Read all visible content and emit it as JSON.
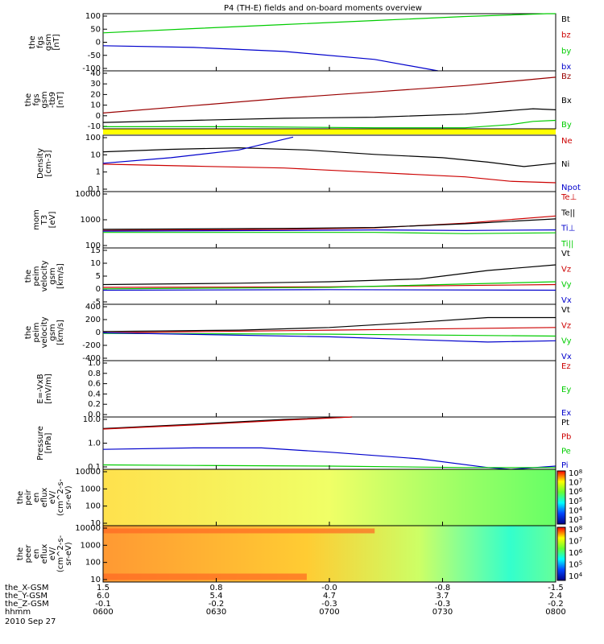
{
  "figure": {
    "title": "P4 (TH-E) fields and on-board moments overview",
    "date": "2010 Sep 27"
  },
  "colors": {
    "black": "#000000",
    "red": "#cc0000",
    "green": "#00cc00",
    "blue": "#0000cc",
    "darkred": "#990000",
    "yellow": "#ffff00"
  },
  "chart_data": [
    {
      "type": "line",
      "ylabel": [
        "the",
        "fgs",
        "gsm",
        "[nT]"
      ],
      "yticks": [
        "100",
        "50",
        "0",
        "-50",
        "-100"
      ],
      "ylim": [
        -100,
        100
      ],
      "scale": "linear",
      "legend": [
        {
          "name": "Bt",
          "color": "#000000"
        },
        {
          "name": "bz",
          "color": "#cc0000"
        },
        {
          "name": "by",
          "color": "#00cc00"
        },
        {
          "name": "bx",
          "color": "#0000cc"
        }
      ],
      "series": [
        {
          "name": "by",
          "color": "#00cc00",
          "x": [
            0,
            0.2,
            0.4,
            0.6,
            0.8,
            0.98,
            1
          ],
          "y": [
            33,
            48,
            62,
            76,
            90,
            100,
            100
          ]
        },
        {
          "name": "bx",
          "color": "#0000cc",
          "x": [
            0,
            0.2,
            0.4,
            0.6,
            0.74
          ],
          "y": [
            -12,
            -18,
            -32,
            -60,
            -100
          ]
        }
      ]
    },
    {
      "type": "line",
      "ylabel": [
        "the",
        "fgs",
        "gsm",
        "-tb9",
        "[nT]"
      ],
      "yticks": [
        "40",
        "30",
        "20",
        "10",
        "0",
        "-10"
      ],
      "ylim": [
        -15,
        40
      ],
      "scale": "linear",
      "legend": [
        {
          "name": "Bz",
          "color": "#990000"
        },
        {
          "name": "Bx",
          "color": "#000000"
        },
        {
          "name": "By",
          "color": "#00cc00"
        }
      ],
      "series": [
        {
          "name": "Bz",
          "color": "#990000",
          "x": [
            0,
            0.2,
            0.4,
            0.6,
            0.8,
            0.95,
            1
          ],
          "y": [
            0,
            7,
            14,
            20,
            26,
            32,
            34
          ]
        },
        {
          "name": "Bx",
          "color": "#000000",
          "x": [
            0,
            0.2,
            0.4,
            0.6,
            0.8,
            0.95,
            1
          ],
          "y": [
            -9,
            -7,
            -5,
            -4,
            -1,
            4,
            3
          ]
        },
        {
          "name": "By",
          "color": "#00cc00",
          "x": [
            0,
            0.3,
            0.6,
            0.8,
            0.9,
            0.95,
            1
          ],
          "y": [
            -13,
            -13,
            -14,
            -14,
            -11,
            -8,
            -7
          ]
        }
      ]
    },
    {
      "type": "line",
      "ylabel": [
        "Density",
        "[cm-3]"
      ],
      "yticks": [
        "100",
        "10",
        "1",
        "0.1"
      ],
      "ylim": [
        0.03,
        200
      ],
      "scale": "log",
      "legend": [
        {
          "name": "Ne",
          "color": "#cc0000"
        },
        {
          "name": "Ni",
          "color": "#000000"
        },
        {
          "name": "Npot",
          "color": "#0000cc"
        }
      ],
      "series": [
        {
          "name": "Ni",
          "color": "#000000",
          "x": [
            0,
            0.15,
            0.3,
            0.45,
            0.6,
            0.75,
            0.85,
            0.93,
            1
          ],
          "y": [
            15,
            22,
            28,
            20,
            10,
            6,
            3,
            1.5,
            2.5
          ]
        },
        {
          "name": "Ne",
          "color": "#cc0000",
          "x": [
            0,
            0.2,
            0.4,
            0.6,
            0.8,
            0.9,
            1
          ],
          "y": [
            2.2,
            1.6,
            1.2,
            0.6,
            0.3,
            0.15,
            0.12
          ]
        },
        {
          "name": "Npot",
          "color": "#0000cc",
          "x": [
            0,
            0.15,
            0.3,
            0.42
          ],
          "y": [
            2.5,
            6,
            20,
            150
          ]
        }
      ]
    },
    {
      "type": "line",
      "ylabel": [
        "mom",
        "T3",
        "[eV]"
      ],
      "yticks": [
        "10000",
        "1000",
        "100"
      ],
      "ylim": [
        50,
        20000
      ],
      "scale": "log",
      "legend": [
        {
          "name": "Te⊥",
          "color": "#cc0000"
        },
        {
          "name": "Te||",
          "color": "#000000"
        },
        {
          "name": "Ti⊥",
          "color": "#0000cc"
        },
        {
          "name": "Ti||",
          "color": "#00cc00"
        }
      ],
      "series": [
        {
          "name": "Te⊥",
          "color": "#cc0000",
          "x": [
            0,
            0.4,
            0.6,
            0.8,
            1
          ],
          "y": [
            320,
            360,
            420,
            700,
            1500
          ]
        },
        {
          "name": "Te||",
          "color": "#000000",
          "x": [
            0,
            0.4,
            0.6,
            0.8,
            1
          ],
          "y": [
            360,
            400,
            440,
            650,
            1100
          ]
        },
        {
          "name": "Ti⊥",
          "color": "#0000cc",
          "x": [
            0,
            0.4,
            0.6,
            0.8,
            1
          ],
          "y": [
            300,
            320,
            340,
            320,
            340
          ]
        },
        {
          "name": "Ti||",
          "color": "#00cc00",
          "x": [
            0,
            0.4,
            0.6,
            0.8,
            1
          ],
          "y": [
            260,
            260,
            260,
            230,
            250
          ]
        }
      ]
    },
    {
      "type": "line",
      "ylabel": [
        "the",
        "peim",
        "velocity",
        "gsm",
        "[km/s]"
      ],
      "yticks": [
        "15",
        "10",
        "5",
        "0",
        "-5"
      ],
      "ylim": [
        -5,
        15
      ],
      "scale": "linear",
      "legend": [
        {
          "name": "Vt",
          "color": "#000000"
        },
        {
          "name": "Vz",
          "color": "#cc0000"
        },
        {
          "name": "Vy",
          "color": "#00cc00"
        },
        {
          "name": "Vx",
          "color": "#0000cc"
        }
      ],
      "series": [
        {
          "name": "Vt",
          "color": "#000000",
          "x": [
            0,
            0.3,
            0.5,
            0.7,
            0.85,
            1
          ],
          "y": [
            2,
            2.5,
            3,
            4,
            7,
            9
          ]
        },
        {
          "name": "Vz",
          "color": "#cc0000",
          "x": [
            0,
            0.5,
            1
          ],
          "y": [
            1,
            1.2,
            2
          ]
        },
        {
          "name": "Vy",
          "color": "#00cc00",
          "x": [
            0,
            0.5,
            1
          ],
          "y": [
            0.5,
            1,
            3
          ]
        },
        {
          "name": "Vx",
          "color": "#0000cc",
          "x": [
            0,
            0.5,
            1
          ],
          "y": [
            0,
            0.2,
            0
          ]
        }
      ]
    },
    {
      "type": "line",
      "ylabel": [
        "the",
        "peim",
        "velocity",
        "gsm",
        "[km/s]"
      ],
      "yticks": [
        "400",
        "200",
        "0",
        "-200",
        "-400"
      ],
      "ylim": [
        -400,
        450
      ],
      "scale": "linear",
      "legend": [
        {
          "name": "Vt",
          "color": "#000000"
        },
        {
          "name": "Vz",
          "color": "#cc0000"
        },
        {
          "name": "Vy",
          "color": "#00cc00"
        },
        {
          "name": "Vx",
          "color": "#0000cc"
        }
      ],
      "series": [
        {
          "name": "Vt",
          "color": "#000000",
          "x": [
            0,
            0.3,
            0.5,
            0.7,
            0.85,
            1
          ],
          "y": [
            40,
            60,
            100,
            180,
            250,
            250
          ]
        },
        {
          "name": "Vz",
          "color": "#cc0000",
          "x": [
            0,
            0.5,
            1
          ],
          "y": [
            20,
            60,
            100
          ]
        },
        {
          "name": "Vy",
          "color": "#00cc00",
          "x": [
            0,
            0.5,
            1
          ],
          "y": [
            10,
            0,
            -30
          ]
        },
        {
          "name": "Vx",
          "color": "#0000cc",
          "x": [
            0,
            0.5,
            0.85,
            1
          ],
          "y": [
            20,
            -40,
            -120,
            -100
          ]
        }
      ]
    },
    {
      "type": "line",
      "ylabel": [
        "E=-VxB",
        "[mV/m]"
      ],
      "yticks": [
        "1.0",
        "0.8",
        "0.6",
        "0.4",
        "0.2",
        "0.0"
      ],
      "ylim": [
        0,
        1
      ],
      "scale": "linear",
      "legend": [
        {
          "name": "Ez",
          "color": "#cc0000"
        },
        {
          "name": "Ey",
          "color": "#00cc00"
        },
        {
          "name": "Ex",
          "color": "#0000cc"
        }
      ],
      "series": []
    },
    {
      "type": "line",
      "ylabel": [
        "Pressure",
        "[nPa]"
      ],
      "yticks": [
        "10.0",
        "1.0",
        "0.1"
      ],
      "ylim": [
        0.04,
        30
      ],
      "scale": "log",
      "legend": [
        {
          "name": "Pt",
          "color": "#000000"
        },
        {
          "name": "Pb",
          "color": "#cc0000"
        },
        {
          "name": "Pe",
          "color": "#00cc00"
        },
        {
          "name": "Pi",
          "color": "#0000cc"
        }
      ],
      "series": [
        {
          "name": "Pt",
          "color": "#000000",
          "x": [
            0,
            0.2,
            0.4,
            0.55
          ],
          "y": [
            7,
            12,
            22,
            35
          ]
        },
        {
          "name": "Pb",
          "color": "#cc0000",
          "x": [
            0,
            0.2,
            0.4,
            0.55
          ],
          "y": [
            6.5,
            11,
            20,
            32
          ]
        },
        {
          "name": "Pi",
          "color": "#0000cc",
          "x": [
            0,
            0.2,
            0.35,
            0.5,
            0.7,
            0.85,
            0.9,
            1
          ],
          "y": [
            0.5,
            0.6,
            0.6,
            0.35,
            0.15,
            0.05,
            0.04,
            0.06
          ]
        },
        {
          "name": "Pe",
          "color": "#00cc00",
          "x": [
            0,
            0.2,
            0.5,
            0.8,
            1
          ],
          "y": [
            0.07,
            0.065,
            0.06,
            0.05,
            0.05
          ]
        }
      ]
    },
    {
      "type": "heatmap",
      "ylabel": [
        "the",
        "peir",
        "en",
        "eflux",
        "eV/",
        "(cm^2-s-",
        "sr-eV)"
      ],
      "yticks": [
        "10000",
        "1000",
        "100",
        "10"
      ],
      "colorbar_ticks": [
        "10^8",
        "10^7",
        "10^6",
        "10^5",
        "10^4",
        "10^3"
      ],
      "description_values": {
        "left": "yellow",
        "right": "green"
      }
    },
    {
      "type": "heatmap",
      "ylabel": [
        "the",
        "peer",
        "en",
        "eflux",
        "eV/",
        "(cm^2-s-",
        "sr-eV)"
      ],
      "yticks": [
        "10000",
        "1000",
        "100",
        "10"
      ],
      "colorbar_ticks": [
        "10^8",
        "10^7",
        "10^6",
        "10^5",
        "10^4"
      ],
      "description_values": {
        "left": "orange",
        "right": "cyan"
      }
    }
  ],
  "xaxis": {
    "rows": [
      {
        "label": "the_X-GSM",
        "values": [
          "1.5",
          "0.8",
          "-0.0",
          "-0.8",
          "-1.5"
        ]
      },
      {
        "label": "the_Y-GSM",
        "values": [
          "6.0",
          "5.4",
          "4.7",
          "3.7",
          "2.4"
        ]
      },
      {
        "label": "the_Z-GSM",
        "values": [
          "-0.1",
          "-0.2",
          "-0.3",
          "-0.3",
          "-0.2"
        ]
      },
      {
        "label": "hhmm",
        "values": [
          "0600",
          "0630",
          "0700",
          "0730",
          "0800"
        ]
      }
    ]
  }
}
